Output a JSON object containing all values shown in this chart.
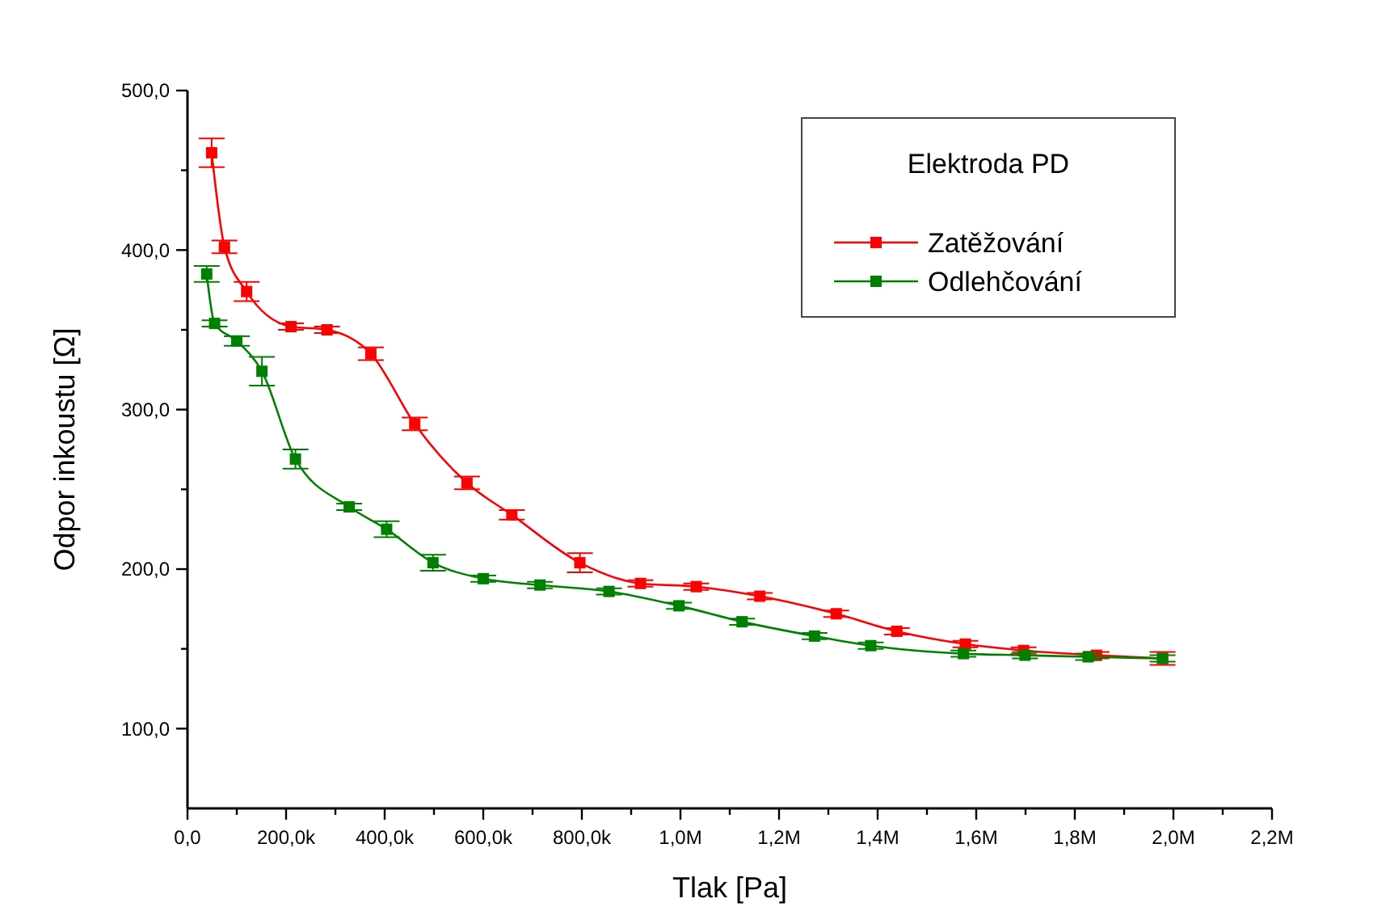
{
  "chart_data": {
    "type": "line",
    "xlabel": "Tlak [Pa]",
    "ylabel": "Odpor inkoustu [Ω]",
    "legend_title": "Elektroda PD",
    "legend": "top right",
    "marker": "square",
    "line_style": "solid",
    "grid": false,
    "xlim": [
      0,
      2200000
    ],
    "ylim": [
      50,
      500
    ],
    "xticks": [
      {
        "value": 0,
        "label": "0,0"
      },
      {
        "value": 100000,
        "label": null
      },
      {
        "value": 200000,
        "label": "200,0k"
      },
      {
        "value": 300000,
        "label": null
      },
      {
        "value": 400000,
        "label": "400,0k"
      },
      {
        "value": 500000,
        "label": null
      },
      {
        "value": 600000,
        "label": "600,0k"
      },
      {
        "value": 700000,
        "label": null
      },
      {
        "value": 800000,
        "label": "800,0k"
      },
      {
        "value": 900000,
        "label": null
      },
      {
        "value": 1000000,
        "label": "1,0M"
      },
      {
        "value": 1100000,
        "label": null
      },
      {
        "value": 1200000,
        "label": "1,2M"
      },
      {
        "value": 1300000,
        "label": null
      },
      {
        "value": 1400000,
        "label": "1,4M"
      },
      {
        "value": 1500000,
        "label": null
      },
      {
        "value": 1600000,
        "label": "1,6M"
      },
      {
        "value": 1700000,
        "label": null
      },
      {
        "value": 1800000,
        "label": "1,8M"
      },
      {
        "value": 1900000,
        "label": null
      },
      {
        "value": 2000000,
        "label": "2,0M"
      },
      {
        "value": 2100000,
        "label": null
      },
      {
        "value": 2200000,
        "label": "2,2M"
      }
    ],
    "yticks": [
      {
        "value": 100,
        "label": "100,0"
      },
      {
        "value": 150,
        "label": null
      },
      {
        "value": 200,
        "label": "200,0"
      },
      {
        "value": 250,
        "label": null
      },
      {
        "value": 300,
        "label": "300,0"
      },
      {
        "value": 350,
        "label": null
      },
      {
        "value": 400,
        "label": "400,0"
      },
      {
        "value": 450,
        "label": null
      },
      {
        "value": 500,
        "label": "500,0"
      }
    ],
    "series": [
      {
        "name": "Zatěžování",
        "color": "#ff0000",
        "x": [
          49000,
          75000,
          120000,
          210000,
          283000,
          372000,
          461000,
          567000,
          658000,
          796000,
          919000,
          1032000,
          1161000,
          1316000,
          1439000,
          1578000,
          1696000,
          1844000,
          1978000
        ],
        "values": [
          461,
          402,
          374,
          352,
          350,
          335,
          291,
          254,
          234,
          204,
          191,
          189,
          183,
          172,
          161,
          153,
          149,
          146,
          144
        ],
        "errors": [
          9,
          4,
          6,
          2,
          2,
          4,
          4,
          4,
          3,
          6,
          2,
          2,
          2,
          2,
          2,
          2,
          2,
          2,
          4
        ]
      },
      {
        "name": "Odlehčování",
        "color": "#008000",
        "x": [
          39000,
          55000,
          100000,
          151000,
          219000,
          328000,
          404000,
          498000,
          600000,
          715000,
          855000,
          997000,
          1125000,
          1272000,
          1386000,
          1574000,
          1699000,
          1827000,
          1978000
        ],
        "values": [
          385,
          354,
          343,
          324,
          269,
          239,
          225,
          204,
          194,
          190,
          186,
          177,
          167,
          158,
          152,
          147,
          146,
          145,
          144
        ],
        "errors": [
          5,
          2,
          3,
          9,
          6,
          2,
          5,
          5,
          2,
          2,
          2,
          2,
          2,
          2,
          2,
          2,
          2,
          2,
          2
        ]
      }
    ]
  }
}
